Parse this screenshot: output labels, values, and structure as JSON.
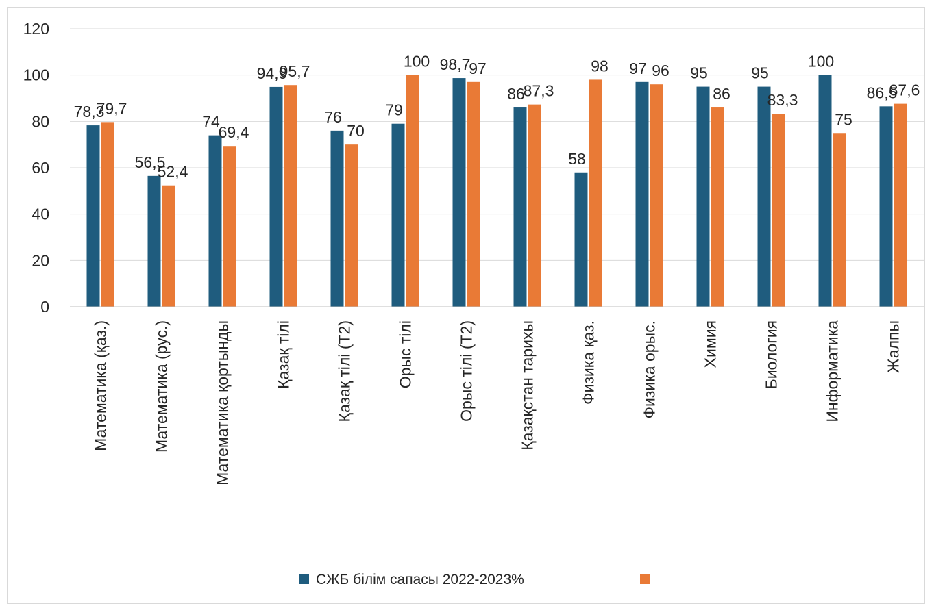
{
  "chart_data": {
    "type": "bar",
    "categories": [
      "Математика (қаз.)",
      "Математика (рус.)",
      "Математика қортынды",
      "Қазақ тілі",
      "Қазақ тілі (Т2)",
      "Орыс тілі",
      "Орыс тілі (Т2)",
      "Қазақстан тарихы",
      "Физика қаз.",
      "Физика орыс.",
      "Химия",
      "Биология",
      "Информатика",
      "Жалпы"
    ],
    "series": [
      {
        "name": "СЖБ білім сапасы 2022-2023%",
        "color": "#1f5c7e",
        "values": [
          78.3,
          56.5,
          74,
          94.9,
          76,
          79,
          98.7,
          86,
          58,
          97,
          95,
          95,
          100,
          86.5
        ],
        "labels": [
          "78,3",
          "56,5",
          "74",
          "94,9",
          "76",
          "79",
          "98,7",
          "86",
          "58",
          "97",
          "95",
          "95",
          "100",
          "86,5"
        ]
      },
      {
        "name": "",
        "color": "#e97a36",
        "values": [
          79.7,
          52.4,
          69.4,
          95.7,
          70,
          100,
          97,
          87.3,
          98,
          96,
          86,
          83.3,
          75,
          87.6
        ],
        "labels": [
          "79,7",
          "52,4",
          "69,4",
          "95,7",
          "70",
          "100",
          "97",
          "87,3",
          "98",
          "96",
          "86",
          "83,3",
          "75",
          "87,6"
        ]
      }
    ],
    "yticks": [
      "0",
      "20",
      "40",
      "60",
      "80",
      "100",
      "120"
    ],
    "ylim": [
      0,
      120
    ],
    "gridlines": true,
    "legend_position": "bottom",
    "title": "",
    "xlabel": "",
    "ylabel": ""
  }
}
